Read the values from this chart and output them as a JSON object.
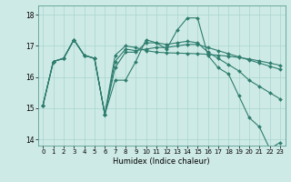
{
  "title": "",
  "xlabel": "Humidex (Indice chaleur)",
  "xlim": [
    -0.5,
    23.5
  ],
  "ylim": [
    13.8,
    18.3
  ],
  "yticks": [
    14,
    15,
    16,
    17,
    18
  ],
  "xticks": [
    0,
    1,
    2,
    3,
    4,
    5,
    6,
    7,
    8,
    9,
    10,
    11,
    12,
    13,
    14,
    15,
    16,
    17,
    18,
    19,
    20,
    21,
    22,
    23
  ],
  "bg_color": "#ceeae6",
  "line_color": "#2e7d6e",
  "grid_color": "#a8d5cf",
  "series": [
    [
      15.1,
      16.5,
      16.6,
      17.2,
      16.7,
      16.6,
      14.8,
      15.9,
      15.9,
      16.5,
      17.2,
      17.1,
      16.9,
      17.5,
      17.9,
      17.9,
      16.7,
      16.3,
      16.1,
      15.4,
      14.7,
      14.4,
      13.7,
      13.9
    ],
    [
      15.1,
      16.5,
      16.6,
      17.2,
      16.7,
      16.6,
      14.8,
      16.3,
      16.8,
      16.8,
      17.1,
      17.1,
      17.05,
      17.1,
      17.15,
      17.1,
      16.8,
      16.6,
      16.4,
      16.2,
      15.9,
      15.7,
      15.5,
      15.3
    ],
    [
      15.1,
      16.5,
      16.6,
      17.2,
      16.7,
      16.6,
      14.8,
      16.5,
      16.9,
      16.85,
      16.9,
      16.95,
      16.95,
      17.0,
      17.05,
      17.05,
      16.95,
      16.85,
      16.75,
      16.65,
      16.55,
      16.45,
      16.35,
      16.25
    ],
    [
      15.1,
      16.5,
      16.6,
      17.2,
      16.7,
      16.6,
      14.8,
      16.7,
      17.0,
      16.95,
      16.85,
      16.8,
      16.78,
      16.77,
      16.76,
      16.75,
      16.73,
      16.7,
      16.67,
      16.63,
      16.58,
      16.52,
      16.45,
      16.38
    ]
  ]
}
